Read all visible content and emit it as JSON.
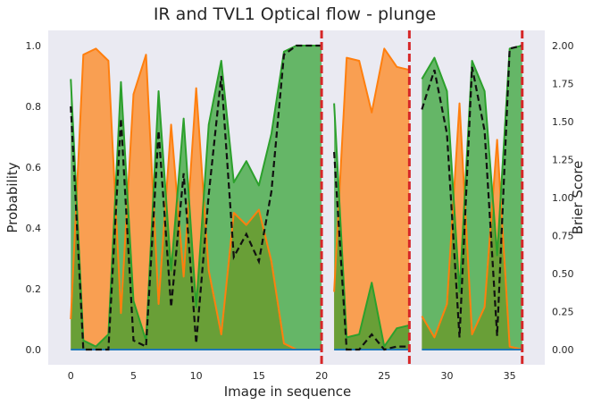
{
  "chart_data": {
    "type": "area",
    "title": "IR and TVL1 Optical flow - plunge",
    "xlabel": "Image in sequence",
    "ylabel": "Probability",
    "y2label": "Brier Score",
    "xlim": [
      -1.8,
      37.8
    ],
    "ylim": [
      -0.05,
      1.05
    ],
    "y2lim": [
      -0.1,
      2.1
    ],
    "xticks": [
      0,
      5,
      10,
      15,
      20,
      25,
      30,
      35
    ],
    "yticks": [
      0.0,
      0.2,
      0.4,
      0.6,
      0.8,
      1.0
    ],
    "y2ticks": [
      0.0,
      0.25,
      0.5,
      0.75,
      1.0,
      1.25,
      1.5,
      1.75,
      2.0
    ],
    "grid": false,
    "background": "#eaeaf2",
    "boundaries": [
      20,
      27,
      36
    ],
    "boundary_color": "#d62728",
    "segments": [
      {
        "x": [
          0,
          1,
          2,
          3,
          4,
          5,
          6,
          7,
          8,
          9,
          10,
          11,
          12,
          13,
          14,
          15,
          16,
          17,
          18,
          19,
          20
        ]
      },
      {
        "x": [
          21,
          22,
          23,
          24,
          25,
          26,
          27
        ]
      },
      {
        "x": [
          28,
          29,
          30,
          31,
          32,
          33,
          34,
          35,
          36
        ]
      }
    ],
    "series": [
      {
        "color": "#ff7f0e",
        "values": [
          0.1,
          0.97,
          0.99,
          0.95,
          0.12,
          0.84,
          0.97,
          0.15,
          0.74,
          0.24,
          0.86,
          0.26,
          0.05,
          0.45,
          0.41,
          0.46,
          0.29,
          0.02,
          0.0,
          0.0,
          0.0,
          0.19,
          0.96,
          0.95,
          0.78,
          0.99,
          0.93,
          0.92,
          0.11,
          0.04,
          0.15,
          0.81,
          0.05,
          0.14,
          0.69,
          0.01,
          0.0
        ]
      },
      {
        "color": "#2ca02c",
        "values": [
          0.89,
          0.03,
          0.01,
          0.05,
          0.88,
          0.16,
          0.03,
          0.85,
          0.26,
          0.76,
          0.14,
          0.74,
          0.95,
          0.55,
          0.62,
          0.54,
          0.71,
          0.98,
          1.0,
          1.0,
          1.0,
          0.81,
          0.04,
          0.05,
          0.22,
          0.01,
          0.07,
          0.08,
          0.89,
          0.96,
          0.85,
          0.19,
          0.95,
          0.85,
          0.31,
          0.99,
          1.0
        ]
      },
      {
        "color": "#1f77b4",
        "values": [
          0,
          0,
          0,
          0,
          0,
          0,
          0,
          0,
          0,
          0,
          0,
          0,
          0,
          0,
          0,
          0,
          0,
          0,
          0,
          0,
          0,
          0,
          0,
          0,
          0,
          0,
          0,
          0,
          0,
          0,
          0,
          0,
          0,
          0,
          0,
          0,
          0
        ]
      }
    ],
    "brier": {
      "axis": "right",
      "color": "#111111",
      "values": [
        1.6,
        0.0,
        0.0,
        0.0,
        1.52,
        0.06,
        0.02,
        1.44,
        0.28,
        1.16,
        0.04,
        1.02,
        1.8,
        0.61,
        0.76,
        0.58,
        1.04,
        1.94,
        2.0,
        2.0,
        2.0,
        1.3,
        0.0,
        0.0,
        0.1,
        0.0,
        0.02,
        0.02,
        1.58,
        1.84,
        1.42,
        0.08,
        1.86,
        1.44,
        0.09,
        1.98,
        2.0
      ]
    }
  }
}
